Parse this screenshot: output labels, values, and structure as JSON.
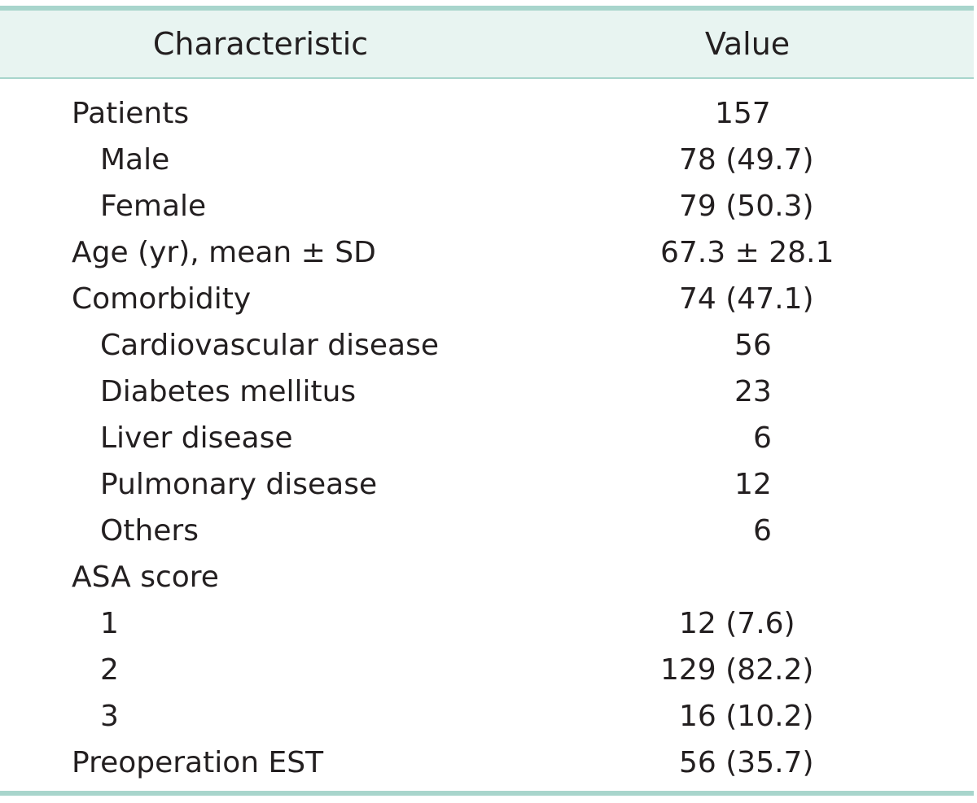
{
  "table": {
    "header": {
      "characteristic": "Characteristic",
      "value": "Value"
    },
    "rows": [
      {
        "label": "Patients",
        "value": "157",
        "indent": false
      },
      {
        "label": "Male",
        "value": "78 (49.7)",
        "indent": true
      },
      {
        "label": "Female",
        "value": "79 (50.3)",
        "indent": true
      },
      {
        "label": "Age (yr), mean ± SD",
        "value": "67.3 ± 28.1",
        "indent": false
      },
      {
        "label": "Comorbidity",
        "value": "74 (47.1)",
        "indent": false
      },
      {
        "label": "Cardiovascular disease",
        "value": "56",
        "indent": true
      },
      {
        "label": "Diabetes mellitus",
        "value": "23",
        "indent": true
      },
      {
        "label": "Liver disease",
        "value": "6",
        "indent": true
      },
      {
        "label": "Pulmonary disease",
        "value": "12",
        "indent": true
      },
      {
        "label": "Others",
        "value": "6",
        "indent": true
      },
      {
        "label": "ASA score",
        "value": "",
        "indent": false
      },
      {
        "label": "1",
        "value": "12 (7.6)",
        "indent": true
      },
      {
        "label": "2",
        "value": "129 (82.2)",
        "indent": true
      },
      {
        "label": "3",
        "value": "16 (10.2)",
        "indent": true
      },
      {
        "label": "Preoperation EST",
        "value": "56 (35.7)",
        "indent": false
      }
    ]
  },
  "colors": {
    "rule": "#a8d5cc",
    "header_background": "#e8f4f1",
    "text": "#231f20"
  }
}
